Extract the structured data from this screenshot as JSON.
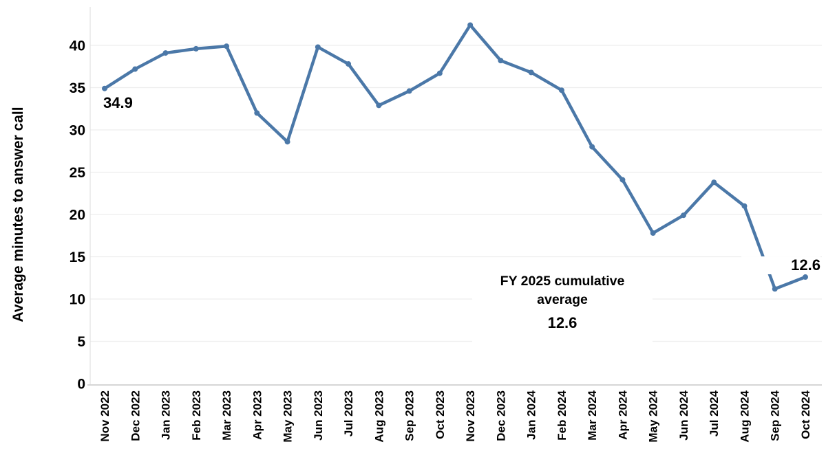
{
  "chart_data": {
    "type": "line",
    "title": "",
    "ylabel": "Average minutes to answer call",
    "xlabel": "",
    "categories": [
      "Nov 2022",
      "Dec 2022",
      "Jan 2023",
      "Feb 2023",
      "Mar 2023",
      "Apr 2023",
      "May 2023",
      "Jun 2023",
      "Jul 2023",
      "Aug 2023",
      "Sep 2023",
      "Oct 2023",
      "Nov 2023",
      "Dec 2023",
      "Jan 2024",
      "Feb 2024",
      "Mar 2024",
      "Apr 2024",
      "May 2024",
      "Jun 2024",
      "Jul 2024",
      "Aug 2024",
      "Sep 2024",
      "Oct 2024"
    ],
    "values": [
      34.9,
      37.2,
      39.1,
      39.6,
      39.9,
      32.0,
      28.6,
      39.8,
      37.8,
      32.9,
      34.6,
      36.7,
      42.4,
      38.2,
      36.8,
      34.7,
      28.0,
      24.1,
      17.8,
      19.9,
      23.8,
      21.0,
      11.2,
      12.6
    ],
    "ylim": [
      0,
      45
    ],
    "yticks": [
      0,
      5,
      10,
      15,
      20,
      25,
      30,
      35,
      40
    ],
    "grid": "horizontal",
    "legend": "none",
    "marker": "circle",
    "line_color": "#4b78a8",
    "grid_color": "#ededed",
    "axis_line_color": "#d6d6d6",
    "plot_border_color": "#e3e3e3",
    "text_color": "#000000"
  },
  "annotations": {
    "first_point_label": "34.9",
    "last_point_label": "12.6",
    "callout_title": "FY 2025 cumulative average",
    "callout_value": "12.6"
  }
}
